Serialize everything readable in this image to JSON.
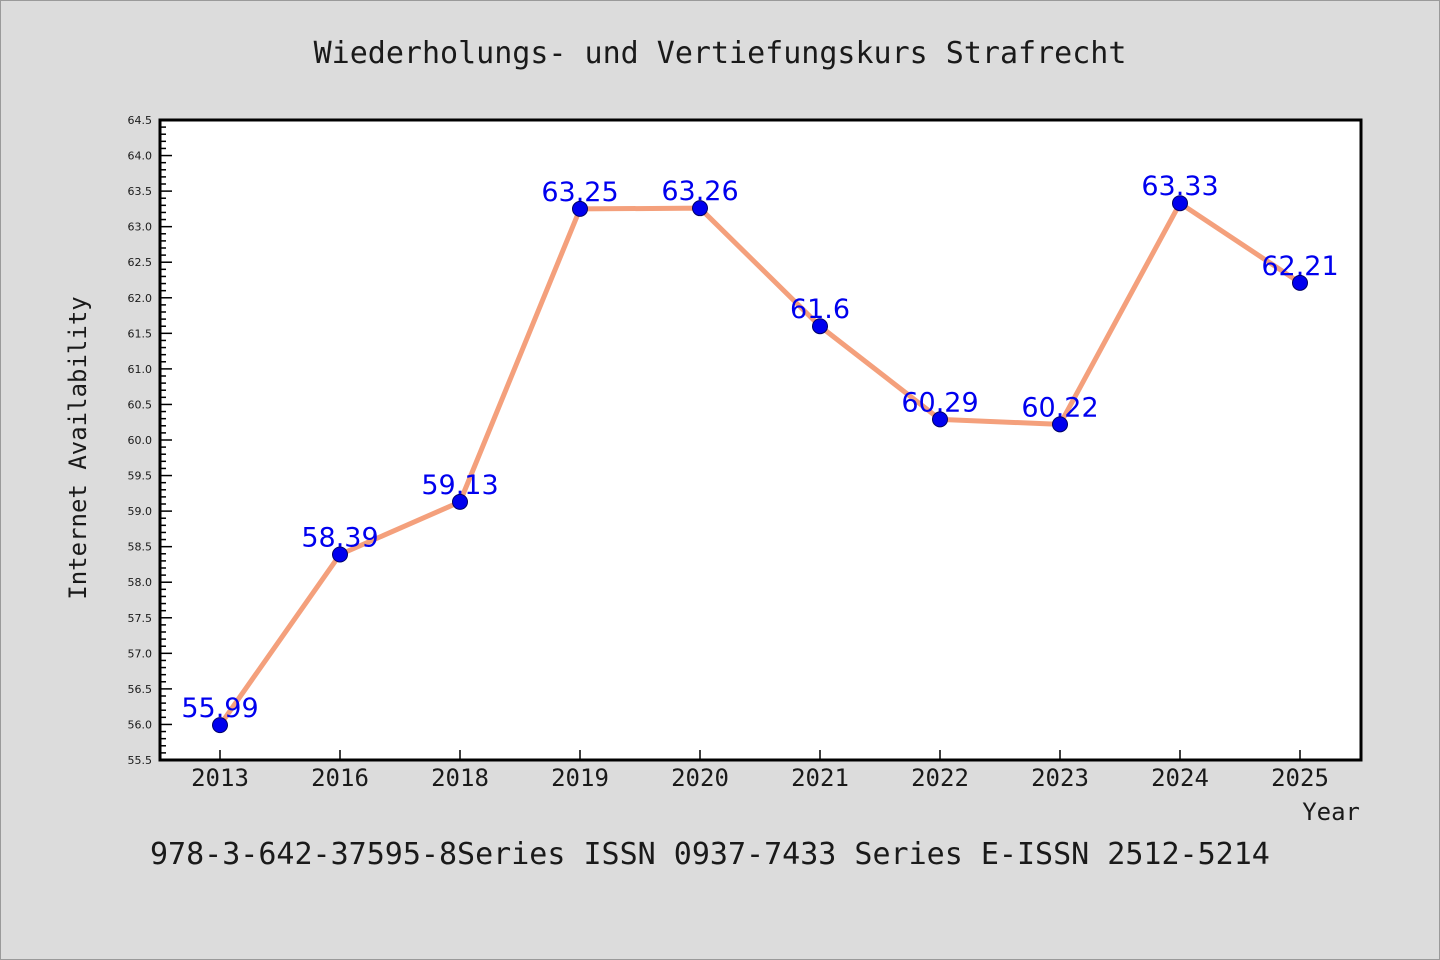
{
  "chart_data": {
    "type": "line",
    "title": "Wiederholungs- und Vertiefungskurs Strafrecht",
    "subtitle": "978-3-642-37595-8Series ISSN 0937-7433 Series E-ISSN 2512-5214",
    "xlabel": "Year",
    "ylabel": "Internet Availability",
    "categories": [
      "2013",
      "2016",
      "2018",
      "2019",
      "2020",
      "2021",
      "2022",
      "2023",
      "2024",
      "2025"
    ],
    "values": [
      55.99,
      58.39,
      59.13,
      63.25,
      63.26,
      61.6,
      60.29,
      60.22,
      63.33,
      62.21
    ],
    "data_labels": [
      "55.99",
      "58.39",
      "59.13",
      "63.25",
      "63.26",
      "61.6",
      "60.29",
      "60.22",
      "63.33",
      "62.21"
    ],
    "yticks": [
      "55.5",
      "56.0",
      "56.5",
      "57.0",
      "57.5",
      "58.0",
      "58.5",
      "59.0",
      "59.5",
      "60.0",
      "60.5",
      "61.0",
      "61.5",
      "62.0",
      "62.5",
      "63.0",
      "63.5",
      "64.0",
      "64.5"
    ],
    "ylim": [
      55.5,
      64.5
    ],
    "ytick_step": 0.5,
    "grid": false,
    "legend": "none",
    "colors": {
      "line": "#f4a07c",
      "marker": "#0000ee",
      "marker_edge": "#000066",
      "data_label": "#0000ee",
      "text": "#1a1a1a",
      "plot_bg": "#ffffff",
      "page_bg": "#dcdcdc"
    }
  }
}
